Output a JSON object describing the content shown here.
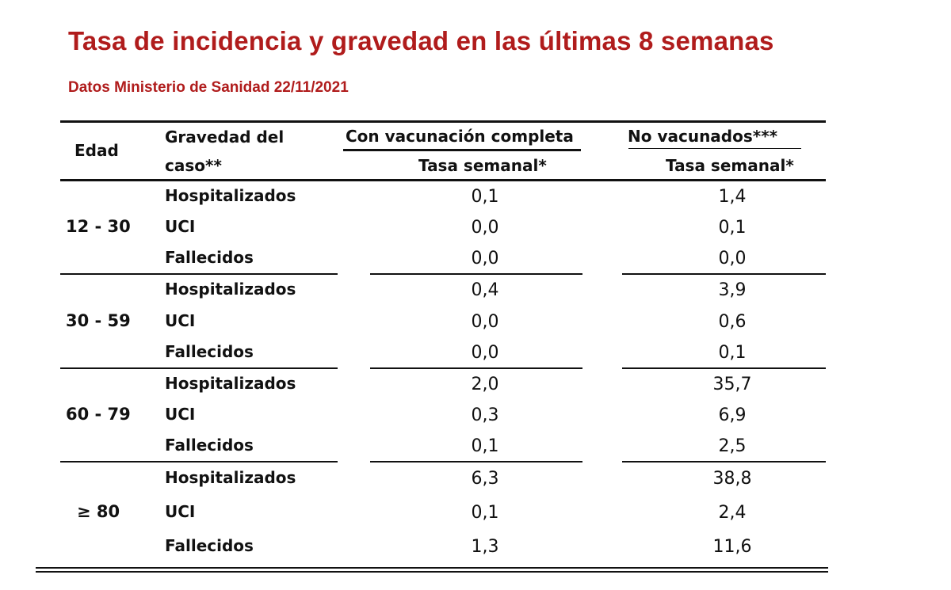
{
  "title": "Tasa de incidencia y gravedad en las últimas 8 semanas",
  "subtitle": "Datos Ministerio de Sanidad 22/11/2021",
  "table": {
    "headers": {
      "edad": "Edad",
      "gravedad_line1": "Gravedad del",
      "gravedad_line2": "caso**",
      "vacunados": "Con vacunación completa",
      "no_vacunados": "No vacunados***",
      "tasa_vacunados": "Tasa semanal*",
      "tasa_no_vacunados": "Tasa semanal*"
    },
    "groups": [
      {
        "age": "12 - 30",
        "rows": [
          {
            "label": "Hospitalizados",
            "vac": "0,1",
            "novac": "1,4"
          },
          {
            "label": "UCI",
            "vac": "0,0",
            "novac": "0,1"
          },
          {
            "label": "Fallecidos",
            "vac": "0,0",
            "novac": "0,0"
          }
        ]
      },
      {
        "age": "30 - 59",
        "rows": [
          {
            "label": "Hospitalizados",
            "vac": "0,4",
            "novac": "3,9"
          },
          {
            "label": "UCI",
            "vac": "0,0",
            "novac": "0,6"
          },
          {
            "label": "Fallecidos",
            "vac": "0,0",
            "novac": "0,1"
          }
        ]
      },
      {
        "age": "60 - 79",
        "rows": [
          {
            "label": "Hospitalizados",
            "vac": "2,0",
            "novac": "35,7"
          },
          {
            "label": "UCI",
            "vac": "0,3",
            "novac": "6,9"
          },
          {
            "label": "Fallecidos",
            "vac": "0,1",
            "novac": "2,5"
          }
        ]
      },
      {
        "age": "≥ 80",
        "rows": [
          {
            "label": "Hospitalizados",
            "vac": "6,3",
            "novac": "38,8"
          },
          {
            "label": "UCI",
            "vac": "0,1",
            "novac": "2,4"
          },
          {
            "label": "Fallecidos",
            "vac": "1,3",
            "novac": "11,6"
          }
        ]
      }
    ]
  }
}
